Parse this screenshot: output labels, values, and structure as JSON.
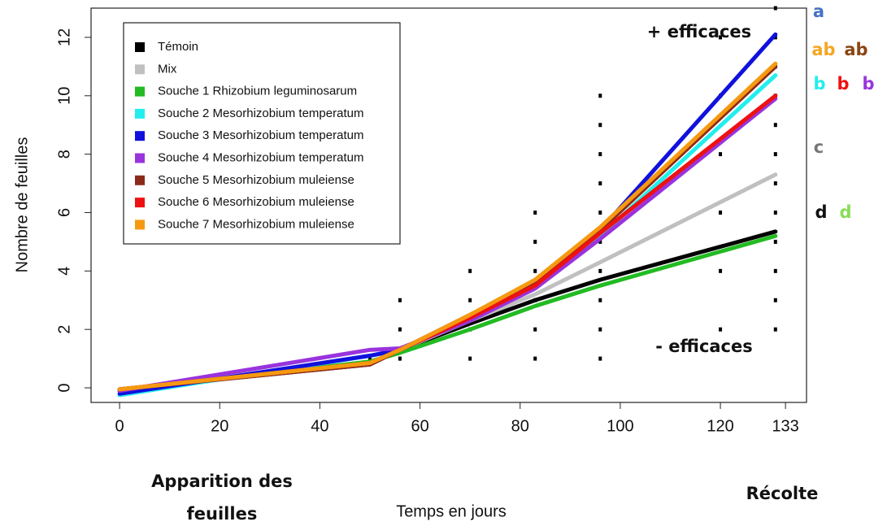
{
  "chart_data": {
    "type": "line",
    "xlabel": "Temps en jours",
    "ylabel": "Nombre de feuilles",
    "xlim": [
      -5.7,
      137.2
    ],
    "ylim": [
      -0.5,
      13
    ],
    "xticks": [
      0,
      20,
      40,
      60,
      80,
      100,
      120,
      133
    ],
    "yticks": [
      0,
      2,
      4,
      6,
      8,
      10,
      12
    ],
    "legend": "top-left",
    "x": [
      0,
      50,
      56,
      70,
      83,
      96,
      131
    ],
    "series": [
      {
        "name": "Témoin",
        "color": "#000000",
        "values": [
          -0.05,
          0.8,
          1.3,
          2.2,
          3.0,
          3.7,
          5.35
        ]
      },
      {
        "name": "Mix",
        "color": "#c0c0c0",
        "values": [
          -0.1,
          0.85,
          1.3,
          2.3,
          3.2,
          4.3,
          7.3
        ]
      },
      {
        "name": "Souche 1 Rhizobium leguminosarum",
        "color": "#22bb22",
        "values": [
          -0.1,
          0.9,
          1.2,
          2.0,
          2.8,
          3.5,
          5.2
        ]
      },
      {
        "name": "Souche 2 Mesorhizobium temperatum",
        "color": "#22eeee",
        "values": [
          -0.25,
          1.1,
          1.3,
          2.4,
          3.5,
          5.2,
          10.7
        ]
      },
      {
        "name": "Souche 3 Mesorhizobium temperatum",
        "color": "#1111dd",
        "values": [
          -0.2,
          1.1,
          1.3,
          2.4,
          3.5,
          5.4,
          12.1
        ]
      },
      {
        "name": "Souche 4 Mesorhizobium temperatum",
        "color": "#9933dd",
        "values": [
          -0.1,
          1.3,
          1.35,
          2.3,
          3.4,
          5.1,
          9.9
        ]
      },
      {
        "name": "Souche 5 Mesorhizobium muleiense",
        "color": "#8b2a1a",
        "values": [
          -0.05,
          0.8,
          1.3,
          2.5,
          3.6,
          5.4,
          11.0
        ]
      },
      {
        "name": "Souche 6 Mesorhizobium muleiense",
        "color": "#ee1111",
        "values": [
          -0.05,
          0.85,
          1.3,
          2.4,
          3.5,
          5.3,
          10.0
        ]
      },
      {
        "name": "Souche 7 Mesorhizobium muleiense",
        "color": "#f59a10",
        "values": [
          -0.05,
          0.85,
          1.3,
          2.5,
          3.7,
          5.5,
          11.1
        ]
      }
    ],
    "observations": {
      "x": [
        50,
        56,
        56,
        56,
        70,
        70,
        70,
        70,
        83,
        83,
        83,
        83,
        83,
        83,
        96,
        96,
        96,
        96,
        96,
        96,
        96,
        96,
        96,
        96,
        120,
        120,
        120,
        120,
        120,
        120,
        131,
        131,
        131,
        131,
        131,
        131,
        131,
        131,
        131,
        131,
        131,
        131
      ],
      "y": [
        1,
        1,
        2,
        3,
        1,
        2,
        3,
        4,
        1,
        2,
        3,
        4,
        5,
        6,
        1,
        2,
        3,
        4,
        5,
        6,
        7,
        8,
        9,
        10,
        2,
        4,
        6,
        8,
        10,
        12,
        2,
        3,
        4,
        5,
        6,
        7,
        8,
        9,
        10,
        11,
        12,
        13
      ],
      "color": "#000000"
    },
    "annotations": [
      {
        "text": "+ efficaces",
        "color": "#111111"
      },
      {
        "text": "- efficaces",
        "color": "#111111"
      },
      {
        "text": "Apparition des",
        "color": "#111111"
      },
      {
        "text": "feuilles",
        "color": "#111111"
      },
      {
        "text": "Récolte",
        "color": "#111111"
      },
      {
        "text": "a",
        "color": "#4472c4"
      },
      {
        "text": "ab",
        "color": "#f5a623"
      },
      {
        "text": "ab",
        "color": "#8b4513"
      },
      {
        "text": "b",
        "color": "#22eeee"
      },
      {
        "text": "b",
        "color": "#ee1111"
      },
      {
        "text": "b",
        "color": "#9933dd"
      },
      {
        "text": "c",
        "color": "#777777"
      },
      {
        "text": "d",
        "color": "#111111"
      },
      {
        "text": "d",
        "color": "#88dd55"
      }
    ]
  }
}
